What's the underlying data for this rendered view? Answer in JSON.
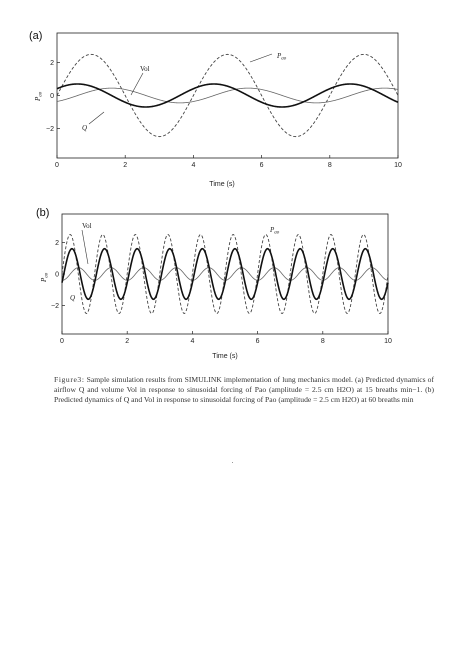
{
  "panels": [
    {
      "label": "(a)",
      "xlabel": "Time (s)",
      "ylabel": "P",
      "ylabel_sub": "ao",
      "xticks": [
        "0",
        "2",
        "4",
        "6",
        "8",
        "10"
      ],
      "yticks": [
        "2",
        "0",
        "−2"
      ],
      "annotations": {
        "pao": "P",
        "pao_sub": "ao",
        "vol": "Vol",
        "q": "Q"
      }
    },
    {
      "label": "(b)",
      "xlabel": "Time (s)",
      "ylabel": "P",
      "ylabel_sub": "ao",
      "xticks": [
        "0",
        "2",
        "4",
        "6",
        "8",
        "10"
      ],
      "yticks": [
        "2",
        "0",
        "−2"
      ],
      "annotations": {
        "pao": "P",
        "pao_sub": "ao",
        "vol": "Vol",
        "q": "Q"
      }
    }
  ],
  "caption": {
    "fig_label": "Figure3:",
    "text": " Sample simulation results from SIMULINK implementation of lung mechanics model. (a) Predicted dynamics of airflow Q and volume Vol in response to sinusoidal forcing of Pao (amplitude = 2.5 cm H2O) at 15 breaths min−1. (b) Predicted dynamics of Q and Vol in response to sinusoidal forcing of Pao (amplitude = 2.5 cm H2O) at 60 breaths min"
  },
  "chart_data": [
    {
      "type": "line",
      "xlabel": "Time (s)",
      "ylabel": "Pao",
      "xlim": [
        0,
        10
      ],
      "ylim": [
        -3.8,
        3.8
      ],
      "grid": false,
      "series": [
        {
          "name": "Pao",
          "style": "dashed",
          "amplitude": 2.5,
          "frequency_breaths_per_min": 15,
          "phase": 0
        },
        {
          "name": "Q",
          "style": "bold",
          "amplitude": 0.7,
          "frequency_breaths_per_min": 15,
          "phase": 0.63
        },
        {
          "name": "Vol",
          "style": "thin",
          "amplitude": 0.45,
          "frequency_breaths_per_min": 15,
          "phase": -0.95
        }
      ]
    },
    {
      "type": "line",
      "xlabel": "Time (s)",
      "ylabel": "Pao",
      "xlim": [
        0,
        10
      ],
      "ylim": [
        -3.8,
        3.8
      ],
      "grid": false,
      "series": [
        {
          "name": "Pao",
          "style": "dashed",
          "amplitude": 2.5,
          "frequency_breaths_per_min": 60,
          "phase": 0
        },
        {
          "name": "Q",
          "style": "bold",
          "amplitude": 1.6,
          "frequency_breaths_per_min": 60,
          "phase": -0.35
        },
        {
          "name": "Vol",
          "style": "thin",
          "amplitude": 0.4,
          "frequency_breaths_per_min": 60,
          "phase": -1.6
        }
      ]
    }
  ]
}
